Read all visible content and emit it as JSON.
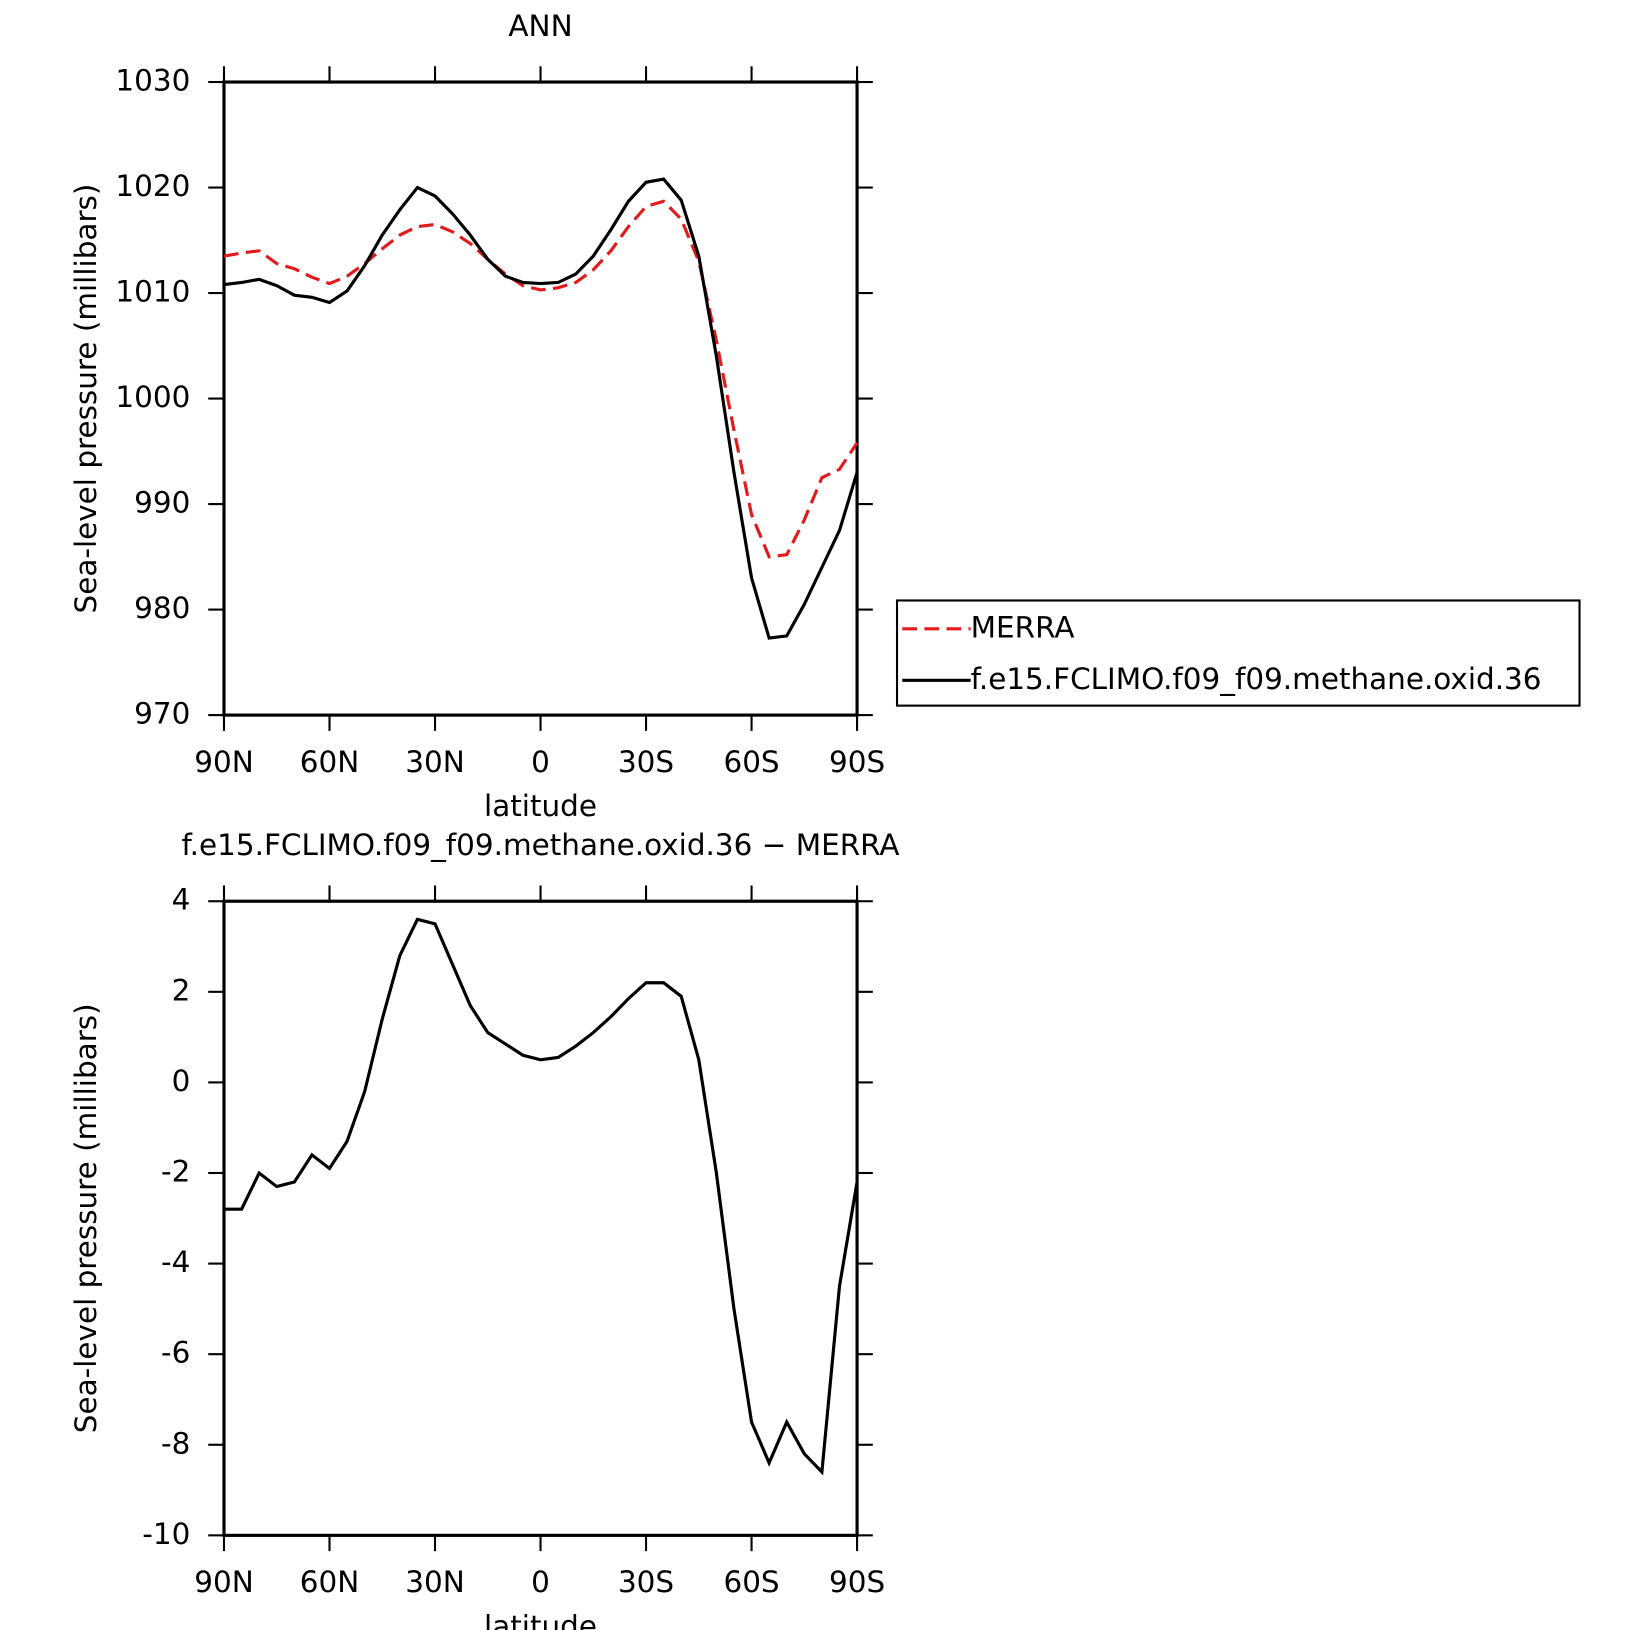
{
  "chart_data": [
    {
      "type": "line",
      "title": "ANN",
      "xlabel": "latitude",
      "ylabel": "Sea-level pressure (millibars)",
      "x": [
        90,
        85,
        80,
        75,
        70,
        65,
        60,
        55,
        50,
        45,
        40,
        35,
        30,
        25,
        20,
        15,
        10,
        5,
        0,
        -5,
        -10,
        -15,
        -20,
        -25,
        -30,
        -35,
        -40,
        -45,
        -50,
        -55,
        -60,
        -65,
        -70,
        -75,
        -80,
        -85,
        -90
      ],
      "xlim": [
        90,
        -90
      ],
      "xticks": [
        {
          "value": 90,
          "label": "90N"
        },
        {
          "value": 60,
          "label": "60N"
        },
        {
          "value": 30,
          "label": "30N"
        },
        0,
        {
          "value": -30,
          "label": "30S"
        },
        {
          "value": -60,
          "label": "60S"
        },
        {
          "value": -90,
          "label": "90S"
        }
      ],
      "ylim": [
        970,
        1030
      ],
      "yticks": [
        970,
        980,
        990,
        1000,
        1010,
        1020,
        1030
      ],
      "legend": "right",
      "series": [
        {
          "name": "MERRA",
          "color": "#e31a1c",
          "dashed": true,
          "values": [
            1013.5,
            1013.8,
            1014,
            1012.8,
            1012.3,
            1011.5,
            1010.9,
            1011.6,
            1012.8,
            1014.2,
            1015.5,
            1016.3,
            1016.5,
            1015.8,
            1014.7,
            1013.2,
            1011.8,
            1010.7,
            1010.3,
            1010.5,
            1011,
            1012.2,
            1014,
            1016.3,
            1018.2,
            1018.7,
            1017,
            1013,
            1005.5,
            997,
            989,
            985,
            985.2,
            988.5,
            992.5,
            993.3,
            995.8
          ]
        },
        {
          "name": "f.e15.FCLIMO.f09_f09.methane.oxid.36",
          "color": "#000000",
          "dashed": false,
          "values": [
            1010.8,
            1011,
            1011.3,
            1010.7,
            1009.8,
            1009.6,
            1009.1,
            1010.2,
            1012.6,
            1015.5,
            1017.9,
            1020,
            1019.2,
            1017.5,
            1015.5,
            1013.2,
            1011.6,
            1011,
            1010.9,
            1011,
            1011.8,
            1013.5,
            1016,
            1018.7,
            1020.5,
            1020.8,
            1018.8,
            1013.5,
            1004,
            993,
            983,
            977.3,
            977.5,
            980.5,
            984,
            987.5,
            993
          ]
        }
      ]
    },
    {
      "type": "line",
      "title": "f.e15.FCLIMO.f09_f09.methane.oxid.36 − MERRA",
      "xlabel": "latitude",
      "ylabel": "Sea-level pressure (millibars)",
      "x": [
        90,
        85,
        80,
        75,
        70,
        65,
        60,
        55,
        50,
        45,
        40,
        35,
        30,
        25,
        20,
        15,
        10,
        5,
        0,
        -5,
        -10,
        -15,
        -20,
        -25,
        -30,
        -35,
        -40,
        -45,
        -50,
        -55,
        -60,
        -65,
        -70,
        -75,
        -80,
        -85,
        -90
      ],
      "xlim": [
        90,
        -90
      ],
      "xticks": [
        {
          "value": 90,
          "label": "90N"
        },
        {
          "value": 60,
          "label": "60N"
        },
        {
          "value": 30,
          "label": "30N"
        },
        0,
        {
          "value": -30,
          "label": "30S"
        },
        {
          "value": -60,
          "label": "60S"
        },
        {
          "value": -90,
          "label": "90S"
        }
      ],
      "ylim": [
        -10,
        4
      ],
      "yticks": [
        -10,
        -8,
        -6,
        -4,
        -2,
        0,
        2,
        4
      ],
      "series": [
        {
          "color": "#000000",
          "dashed": false,
          "values": [
            -2.8,
            -2.8,
            -2.0,
            -2.3,
            -2.2,
            -1.6,
            -1.9,
            -1.3,
            -0.2,
            1.4,
            2.8,
            3.6,
            3.5,
            2.6,
            1.7,
            1.1,
            0.85,
            0.6,
            0.5,
            0.55,
            0.8,
            1.1,
            1.45,
            1.85,
            2.2,
            2.2,
            1.9,
            0.5,
            -2,
            -5,
            -7.5,
            -8.4,
            -7.5,
            -8.2,
            -8.6,
            -4.5,
            -2.2
          ]
        }
      ]
    }
  ]
}
